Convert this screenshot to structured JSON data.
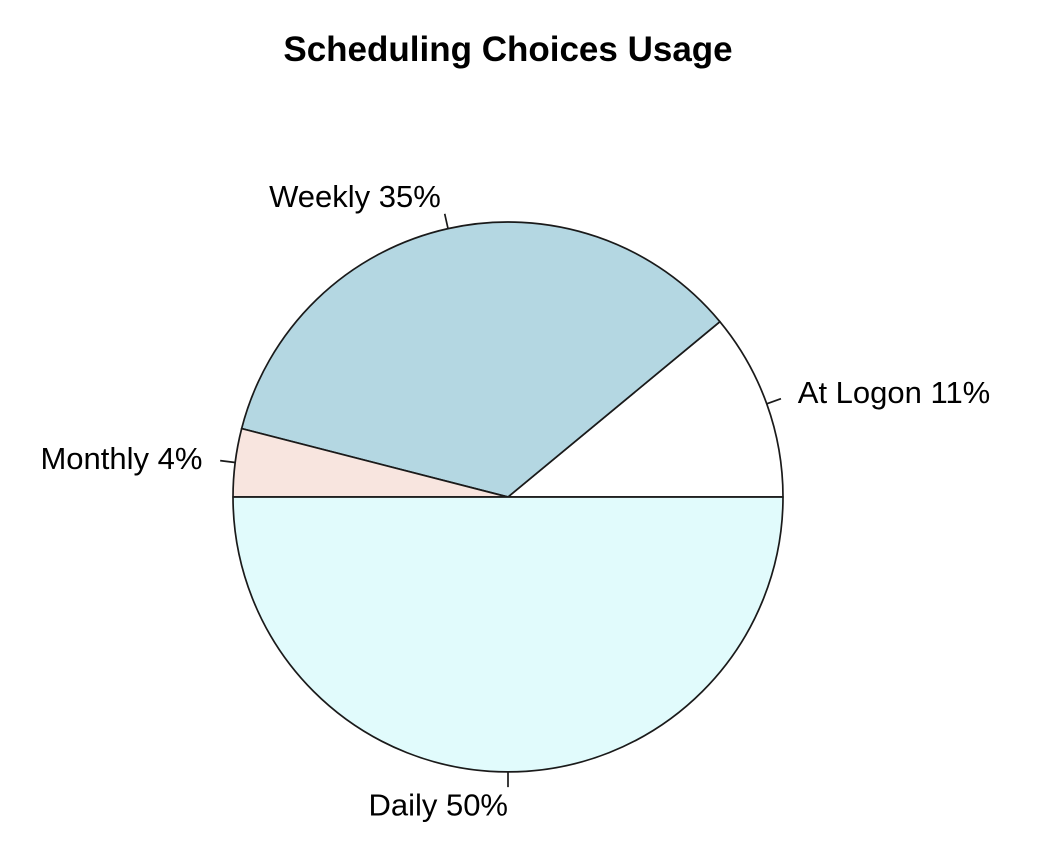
{
  "chart_data": {
    "type": "pie",
    "title": "Scheduling Choices Usage",
    "categories": [
      "At Logon",
      "Weekly",
      "Monthly",
      "Daily"
    ],
    "values": [
      11,
      35,
      4,
      50
    ],
    "value_unit": "%",
    "slice_labels": [
      "At Logon 11%",
      "Weekly 35%",
      "Monthly 4%",
      "Daily 50%"
    ],
    "colors": [
      "#FFFFFF",
      "#B4D7E2",
      "#F8E5DF",
      "#E1FBFC"
    ],
    "start_angle_deg": 0,
    "direction": "counterclockwise",
    "outline_color": "#1A1A1A",
    "text_color": "#000000",
    "background": "#FFFFFF",
    "legend_position": "none",
    "grid": false
  }
}
